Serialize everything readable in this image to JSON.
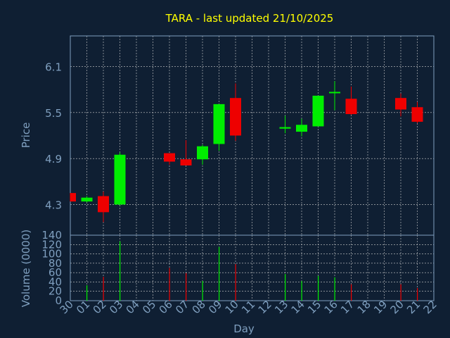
{
  "colors": {
    "background": "#0f1f33",
    "title": "#ffff00",
    "axis_text": "#7f9fbf",
    "frame": "#7f9fbf",
    "grid": "#cfcfcf",
    "up": "#00ee00",
    "down": "#ee0000"
  },
  "chart_data": [
    {
      "type": "candlestick",
      "title": "TARA - last updated 21/10/2025",
      "ylabel": "Price",
      "ylim": [
        3.9,
        6.5
      ],
      "yticks": [
        "4.3",
        "4.9",
        "5.5",
        "6.1"
      ],
      "grid": true,
      "categories": [
        "30",
        "01",
        "02",
        "03",
        "04",
        "05",
        "06",
        "07",
        "08",
        "09",
        "10",
        "11",
        "12",
        "13",
        "14",
        "15",
        "16",
        "17",
        "18",
        "19",
        "20",
        "21",
        "22"
      ],
      "candles": [
        {
          "x": "30",
          "open": 4.45,
          "close": 4.34,
          "high": 4.45,
          "low": 4.34
        },
        {
          "x": "01",
          "open": 4.34,
          "close": 4.39,
          "high": 4.41,
          "low": 4.33
        },
        {
          "x": "02",
          "open": 4.41,
          "close": 4.2,
          "high": 4.47,
          "low": 4.07
        },
        {
          "x": "03",
          "open": 4.3,
          "close": 4.95,
          "high": 4.98,
          "low": 4.29
        },
        {
          "x": "06",
          "open": 4.97,
          "close": 4.86,
          "high": 4.97,
          "low": 4.82
        },
        {
          "x": "07",
          "open": 4.89,
          "close": 4.81,
          "high": 5.14,
          "low": 4.81
        },
        {
          "x": "08",
          "open": 4.89,
          "close": 5.06,
          "high": 5.08,
          "low": 4.82
        },
        {
          "x": "09",
          "open": 5.09,
          "close": 5.61,
          "high": 5.61,
          "low": 5.0
        },
        {
          "x": "10",
          "open": 5.69,
          "close": 5.2,
          "high": 5.88,
          "low": 5.13
        },
        {
          "x": "13",
          "open": 5.29,
          "close": 5.31,
          "high": 5.46,
          "low": 5.23
        },
        {
          "x": "14",
          "open": 5.25,
          "close": 5.34,
          "high": 5.42,
          "low": 5.19
        },
        {
          "x": "15",
          "open": 5.32,
          "close": 5.72,
          "high": 5.72,
          "low": 5.32
        },
        {
          "x": "16",
          "open": 5.76,
          "close": 5.77,
          "high": 5.91,
          "low": 5.53
        },
        {
          "x": "17",
          "open": 5.68,
          "close": 5.48,
          "high": 5.84,
          "low": 5.47
        },
        {
          "x": "20",
          "open": 5.69,
          "close": 5.54,
          "high": 5.75,
          "low": 5.45
        },
        {
          "x": "21",
          "open": 5.57,
          "close": 5.38,
          "high": 5.64,
          "low": 5.36
        }
      ]
    },
    {
      "type": "bar",
      "xlabel": "Day",
      "ylabel": "Volume (0000)",
      "ylim": [
        0,
        140
      ],
      "yticks": [
        "0",
        "20",
        "40",
        "60",
        "80",
        "100",
        "120",
        "140"
      ],
      "grid": true,
      "categories": [
        "30",
        "01",
        "02",
        "03",
        "04",
        "05",
        "06",
        "07",
        "08",
        "09",
        "10",
        "11",
        "12",
        "13",
        "14",
        "15",
        "16",
        "17",
        "18",
        "19",
        "20",
        "21",
        "22"
      ],
      "bars": [
        {
          "x": "30",
          "value": 0,
          "dir": "down"
        },
        {
          "x": "01",
          "value": 33,
          "dir": "up"
        },
        {
          "x": "02",
          "value": 51,
          "dir": "down"
        },
        {
          "x": "03",
          "value": 127,
          "dir": "up"
        },
        {
          "x": "06",
          "value": 70,
          "dir": "down"
        },
        {
          "x": "07",
          "value": 59,
          "dir": "down"
        },
        {
          "x": "08",
          "value": 42,
          "dir": "up"
        },
        {
          "x": "09",
          "value": 115,
          "dir": "up"
        },
        {
          "x": "10",
          "value": 78,
          "dir": "down"
        },
        {
          "x": "13",
          "value": 57,
          "dir": "up"
        },
        {
          "x": "14",
          "value": 42,
          "dir": "up"
        },
        {
          "x": "15",
          "value": 53,
          "dir": "up"
        },
        {
          "x": "16",
          "value": 50,
          "dir": "up"
        },
        {
          "x": "17",
          "value": 35,
          "dir": "down"
        },
        {
          "x": "20",
          "value": 35,
          "dir": "down"
        },
        {
          "x": "21",
          "value": 27,
          "dir": "down"
        }
      ]
    }
  ]
}
